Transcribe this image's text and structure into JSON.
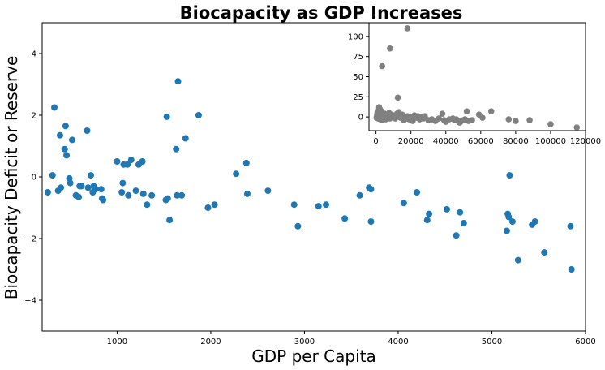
{
  "chart_data": [
    {
      "type": "scatter",
      "title": "Biocapacity as GDP Increases",
      "xlabel": "GDP per Capita",
      "ylabel": "Biocapacity Deficit or Reserve",
      "xlim": [
        200,
        6000
      ],
      "ylim": [
        -5,
        5
      ],
      "xticks": [
        "1000",
        "2000",
        "3000",
        "4000",
        "5000",
        "6000"
      ],
      "yticks": [
        "4",
        "2",
        "0",
        "−2",
        "−4"
      ],
      "marker_color": "#1f77b4",
      "grid": false,
      "x": [
        260,
        310,
        330,
        370,
        390,
        400,
        440,
        450,
        460,
        490,
        500,
        520,
        560,
        590,
        600,
        620,
        680,
        690,
        720,
        740,
        750,
        760,
        770,
        830,
        840,
        850,
        1000,
        1050,
        1060,
        1070,
        1110,
        1120,
        1150,
        1200,
        1230,
        1270,
        1280,
        1320,
        1370,
        1520,
        1530,
        1540,
        1560,
        1630,
        1640,
        1650,
        1690,
        1730,
        1870,
        1970,
        2040,
        2270,
        2380,
        2390,
        2610,
        2890,
        2930,
        3150,
        3230,
        3430,
        3590,
        3690,
        3710,
        3710,
        4060,
        4200,
        4310,
        4330,
        4520,
        4620,
        4660,
        4700,
        5160,
        5170,
        5180,
        5190,
        5220,
        5280,
        5430,
        5460,
        5560,
        5840,
        5850
      ],
      "y": [
        -0.5,
        0.05,
        2.25,
        -0.45,
        1.35,
        -0.35,
        0.9,
        1.65,
        0.7,
        -0.05,
        -0.2,
        1.2,
        -0.6,
        -0.65,
        -0.3,
        -0.3,
        1.5,
        -0.35,
        0.05,
        -0.5,
        -0.3,
        -0.35,
        -0.4,
        -0.4,
        -0.7,
        -0.75,
        0.5,
        -0.5,
        -0.2,
        0.4,
        0.4,
        -0.6,
        0.55,
        -0.45,
        0.4,
        0.5,
        -0.55,
        -0.9,
        -0.6,
        -0.75,
        1.95,
        -0.7,
        -1.4,
        0.9,
        -0.6,
        3.1,
        -0.6,
        1.25,
        2.0,
        -1.0,
        -0.9,
        0.1,
        0.45,
        -0.55,
        -0.45,
        -0.9,
        -1.6,
        -0.95,
        -0.9,
        -1.35,
        -0.6,
        -0.35,
        -1.45,
        -0.4,
        -0.85,
        -0.5,
        -1.4,
        -1.2,
        -1.05,
        -1.9,
        -1.15,
        -1.5,
        -1.75,
        -1.2,
        -1.3,
        0.05,
        -1.45,
        -2.7,
        -1.55,
        -1.45,
        -2.45,
        -1.6,
        -3.0
      ]
    },
    {
      "type": "scatter",
      "title": "",
      "xlabel": "",
      "ylabel": "",
      "xlim": [
        -4000,
        120000
      ],
      "ylim": [
        -17,
        117
      ],
      "xticks": [
        "0",
        "20000",
        "40000",
        "60000",
        "80000",
        "100000",
        "120000"
      ],
      "yticks": [
        "100",
        "75",
        "50",
        "25",
        "0"
      ],
      "marker_color": "#808080",
      "grid": false,
      "x": [
        300,
        600,
        900,
        1200,
        1500,
        1800,
        2000,
        2200,
        2500,
        2800,
        3000,
        3300,
        3500,
        3800,
        4000,
        4500,
        5000,
        5500,
        6000,
        6500,
        7000,
        7500,
        8000,
        8500,
        9000,
        10000,
        11000,
        12000,
        12500,
        13000,
        14000,
        15000,
        16000,
        17000,
        18000,
        19000,
        20000,
        21000,
        22000,
        23000,
        24000,
        25000,
        26000,
        27000,
        28000,
        30000,
        32000,
        34000,
        36000,
        38000,
        39000,
        40000,
        42000,
        44000,
        45000,
        46000,
        47000,
        48000,
        49000,
        50000,
        51000,
        52000,
        53000,
        55000,
        59000,
        61000,
        66000,
        76000,
        80000,
        88000,
        100000,
        115000,
        3500,
        8000,
        12500,
        18000
      ],
      "y": [
        -1,
        3,
        6,
        -2,
        8,
        12,
        1,
        10,
        -3,
        5,
        2,
        7,
        -4,
        3,
        -1,
        1,
        4,
        -3,
        0,
        2,
        -1,
        5,
        -2,
        1,
        3,
        0,
        -2,
        4,
        2,
        6,
        -1,
        3,
        -4,
        -2,
        1,
        -3,
        0,
        -5,
        2,
        -1,
        1,
        -3,
        0,
        -2,
        1,
        -4,
        -3,
        -5,
        -2,
        4,
        -4,
        -6,
        -3,
        -2,
        -4,
        -3,
        -5,
        -7,
        -5,
        -4,
        -3,
        7,
        -5,
        -4,
        3,
        -1,
        7,
        -3,
        -5,
        -4,
        -9,
        -13,
        63,
        85,
        24,
        110
      ]
    }
  ]
}
